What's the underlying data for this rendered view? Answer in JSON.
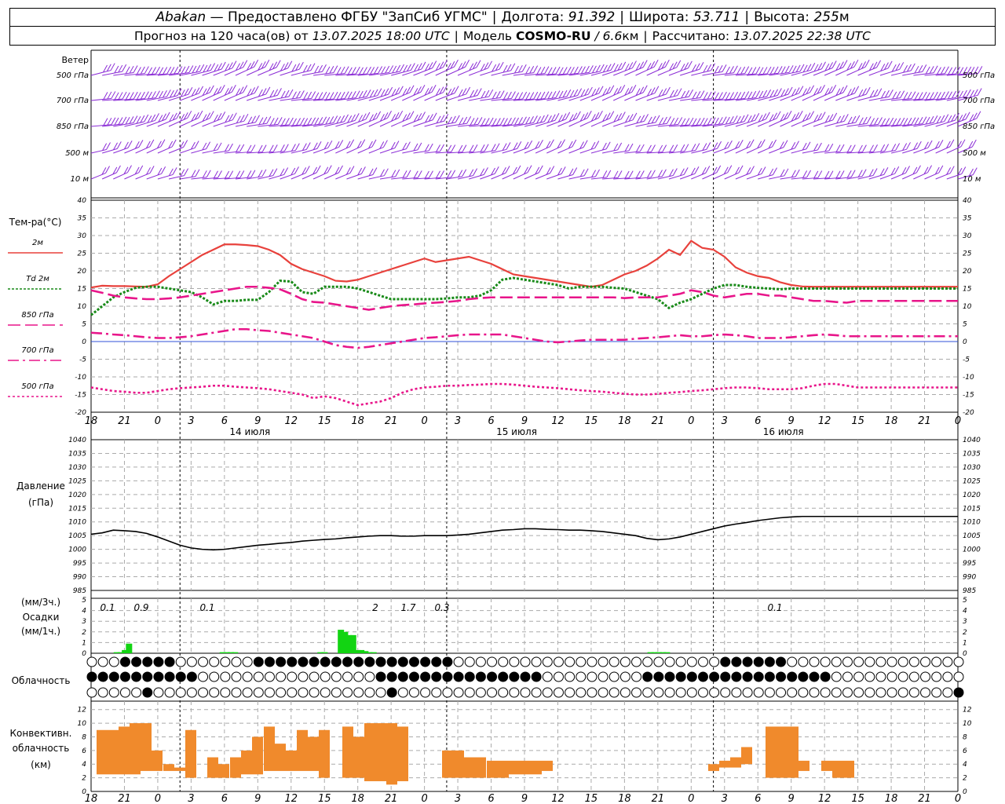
{
  "header": {
    "station": "Abakan",
    "provider": "— Предоставлено ФГБУ \"ЗапСиб УГМС\"",
    "lon_label": "Долгота:",
    "lon": "91.392",
    "lat_label": "Широта:",
    "lat": "53.711",
    "alt_label": "Высота:",
    "alt": "255",
    "alt_unit": "м",
    "forecast_label": "Прогноз на 120 часа(ов) от",
    "forecast_start": "13.07.2025 18:00 UTC",
    "model_label": "Модель",
    "model": "COSMO-RU",
    "model_sep": "/",
    "model_res": "6.6",
    "model_res_unit": "км",
    "calc_label": "Рассчитано:",
    "calc_time": "13.07.2025 22:38 UTC"
  },
  "panels": {
    "wind": {
      "title": "Ветер",
      "levels": [
        "500 гПа",
        "700 гПа",
        "850 гПа",
        "500 м",
        "10 м"
      ],
      "barb_color": "#8b2cd6"
    },
    "temperature": {
      "title": "Тем-ра(°C)",
      "legend": [
        "2м",
        "Td 2м",
        "850 гПа",
        "700 гПа",
        "500 гПа"
      ],
      "colors": [
        "#e8413c",
        "#188a18",
        "#e8158a",
        "#e8158a",
        "#e8158a"
      ]
    },
    "pressure": {
      "title1": "Давление",
      "title2": "(гПа)"
    },
    "precip": {
      "units1": "(мм/3ч.)",
      "title": "Осадки",
      "units2": "(мм/1ч.)",
      "labels": [
        "0.1",
        "0.9",
        "0.1",
        "2",
        "1.7",
        "0.3",
        "0.1"
      ],
      "bar_color": "#12d412"
    },
    "cloud": {
      "title": "Облачность"
    },
    "convective": {
      "title1": "Конвективн.",
      "title2": "облачность",
      "title3": "(км)",
      "bar_color": "#f08a2c"
    }
  },
  "axis": {
    "hour_labels": [
      "18",
      "21",
      "0",
      "3",
      "6",
      "9",
      "12",
      "15",
      "18",
      "21",
      "0",
      "3",
      "6",
      "9",
      "12",
      "15",
      "18",
      "21",
      "0",
      "3",
      "6",
      "9",
      "12",
      "15",
      "18",
      "21",
      "0"
    ],
    "date_labels": [
      "14 июля",
      "15 июля",
      "16 июля"
    ]
  },
  "chart_data": [
    {
      "type": "line",
      "title": "Тем-ра(°C)",
      "ylim": [
        -20,
        40
      ],
      "yticks": [
        40,
        35,
        30,
        25,
        20,
        15,
        10,
        5,
        0,
        -5,
        -10,
        -15,
        -20
      ],
      "x_hours": [
        0,
        3,
        6,
        9,
        12,
        15,
        18,
        21,
        24,
        27,
        30,
        33,
        36,
        39,
        42,
        45,
        48,
        51,
        54,
        57,
        60,
        63,
        66,
        69,
        72,
        75,
        78,
        81,
        84,
        87,
        90,
        93,
        96,
        99,
        102,
        105,
        108,
        111,
        114,
        117,
        120,
        123,
        126,
        129,
        132,
        135,
        138,
        141,
        144,
        147,
        150,
        153,
        156,
        159,
        162,
        165,
        168,
        171,
        174,
        177,
        180,
        183,
        186,
        189,
        192,
        195,
        198,
        201,
        204,
        207,
        210,
        213,
        216,
        219,
        222,
        225,
        228,
        231,
        234
      ],
      "series": [
        {
          "name": "2м",
          "values": [
            15.3,
            15.8,
            15.7,
            15.7,
            15.6,
            15.5,
            16.2,
            18.5,
            20.5,
            22.5,
            24.5,
            26,
            27.5,
            27.5,
            27.3,
            27,
            26,
            24.5,
            22,
            20.5,
            19.5,
            18.5,
            17.2,
            17,
            17.5,
            18.5,
            19.5,
            20.5,
            21.5,
            22.5,
            23.5,
            22.5,
            23,
            23.5,
            24,
            23,
            22,
            20.5,
            19,
            18.5,
            18,
            17.5,
            17,
            16.5,
            16,
            15.5,
            16,
            17.5,
            19,
            20,
            21.5,
            23.5,
            26,
            24.5,
            28.5,
            26.5,
            26,
            24,
            21,
            19.5,
            18.5,
            18,
            16.8,
            16,
            15.6,
            15.5,
            15.5,
            15.5,
            15.5,
            15.5,
            15.5,
            15.5,
            15.5,
            15.5,
            15.5,
            15.5,
            15.5,
            15.5,
            15.5
          ]
        },
        {
          "name": "Td 2м",
          "values": [
            7.5,
            10,
            12.5,
            14,
            15.2,
            15.5,
            15.5,
            15,
            14.5,
            14,
            12.5,
            10.5,
            11.5,
            11.5,
            11.8,
            11.8,
            14,
            17.2,
            17,
            14,
            13.5,
            15.5,
            15.5,
            15.5,
            15,
            14,
            13,
            12,
            12,
            12,
            12,
            12,
            12.2,
            12.5,
            12.5,
            13,
            14.5,
            17.5,
            18,
            17.5,
            17,
            16.5,
            16,
            15,
            15.5,
            15.5,
            15.5,
            15.2,
            15,
            14,
            13,
            12,
            9.5,
            11,
            12,
            13.5,
            15,
            16,
            16,
            15.5,
            15.2,
            15,
            14.8,
            15,
            15,
            15,
            15,
            15,
            15,
            15,
            15,
            15,
            15,
            15,
            15,
            15,
            15,
            15,
            15
          ]
        },
        {
          "name": "850 гПа",
          "values": [
            14.5,
            13.8,
            13,
            12.5,
            12.2,
            12,
            12,
            12.2,
            12.5,
            13,
            13.5,
            14,
            14.5,
            15,
            15.5,
            15.5,
            15.2,
            14.8,
            13.5,
            12,
            11.2,
            11,
            10.5,
            10,
            9.5,
            9,
            9.5,
            10,
            10.3,
            10.5,
            10.8,
            11,
            11.2,
            11.5,
            12,
            12.3,
            12.5,
            12.5,
            12.5,
            12.5,
            12.5,
            12.5,
            12.5,
            12.5,
            12.5,
            12.5,
            12.5,
            12.5,
            12.3,
            12.5,
            12.5,
            12.5,
            13,
            13.5,
            14.5,
            14,
            13,
            12.5,
            13,
            13.5,
            13.5,
            13,
            13,
            12.5,
            12,
            11.5,
            11.5,
            11.2,
            11,
            11.5,
            11.5,
            11.5,
            11.5,
            11.5,
            11.5,
            11.5,
            11.5,
            11.5,
            11.5
          ]
        },
        {
          "name": "700 гПа",
          "values": [
            2.5,
            2.3,
            2,
            1.8,
            1.5,
            1.2,
            1,
            1,
            1.2,
            1.5,
            2,
            2.5,
            3,
            3.5,
            3.5,
            3.2,
            3,
            2.5,
            2,
            1.5,
            1,
            0,
            -1,
            -1.5,
            -1.8,
            -1.5,
            -1,
            -0.5,
            0,
            0.5,
            1,
            1.2,
            1.5,
            1.8,
            2,
            2,
            2,
            2,
            1.5,
            1,
            0.5,
            0,
            -0.2,
            0,
            0.3,
            0.5,
            0.5,
            0.5,
            0.5,
            0.8,
            1,
            1.2,
            1.5,
            1.8,
            1.5,
            1.5,
            1.8,
            2,
            1.8,
            1.5,
            1,
            1,
            1,
            1.2,
            1.5,
            1.8,
            2,
            1.8,
            1.5,
            1.5,
            1.5,
            1.5,
            1.5,
            1.5,
            1.5,
            1.5,
            1.5,
            1.5,
            1.5
          ]
        },
        {
          "name": "500 гПа",
          "values": [
            -13,
            -13.5,
            -14,
            -14.2,
            -14.5,
            -14.5,
            -14,
            -13.5,
            -13.2,
            -13,
            -12.8,
            -12.5,
            -12.5,
            -12.8,
            -13,
            -13.2,
            -13.5,
            -14,
            -14.5,
            -15,
            -16,
            -15.5,
            -16,
            -17,
            -18,
            -17.5,
            -17,
            -16,
            -14.5,
            -13.5,
            -13,
            -12.8,
            -12.5,
            -12.5,
            -12.3,
            -12.2,
            -12,
            -12,
            -12.2,
            -12.5,
            -12.8,
            -13,
            -13.2,
            -13.5,
            -13.8,
            -14,
            -14.2,
            -14.5,
            -14.8,
            -15,
            -15,
            -14.8,
            -14.5,
            -14.3,
            -14,
            -13.8,
            -13.5,
            -13.2,
            -13,
            -13,
            -13.2,
            -13.5,
            -13.5,
            -13.5,
            -13.2,
            -12.5,
            -12,
            -12,
            -12.5,
            -13,
            -13,
            -13,
            -13,
            -13,
            -13,
            -13,
            -13,
            -13,
            -13
          ]
        }
      ]
    },
    {
      "type": "line",
      "title": "Давление (гПа)",
      "ylim": [
        985,
        1040
      ],
      "yticks": [
        1040,
        1035,
        1030,
        1025,
        1020,
        1015,
        1010,
        1005,
        1000,
        995,
        990,
        985
      ],
      "series": [
        {
          "name": "Давление",
          "values": [
            1005.5,
            1006,
            1007,
            1006.8,
            1006.5,
            1005.8,
            1004.5,
            1003,
            1001.5,
            1000.5,
            1000,
            999.8,
            1000,
            1000.5,
            1001,
            1001.5,
            1001.8,
            1002.2,
            1002.5,
            1003,
            1003.3,
            1003.6,
            1003.8,
            1004.2,
            1004.5,
            1004.8,
            1005,
            1005,
            1004.8,
            1004.8,
            1005,
            1005,
            1005,
            1005.2,
            1005.5,
            1006,
            1006.5,
            1007,
            1007.2,
            1007.5,
            1007.5,
            1007.3,
            1007.2,
            1007,
            1007,
            1006.8,
            1006.5,
            1006,
            1005.5,
            1005,
            1004,
            1003.5,
            1003.8,
            1004.5,
            1005.5,
            1006.5,
            1007.5,
            1008.5,
            1009.2,
            1009.8,
            1010.5,
            1011,
            1011.5,
            1011.8,
            1012,
            1012,
            1012,
            1012,
            1012,
            1012,
            1012,
            1012,
            1012,
            1012,
            1012,
            1012,
            1012,
            1012,
            1012
          ]
        }
      ]
    },
    {
      "type": "bar",
      "title": "Осадки",
      "ylim": [
        0,
        5
      ],
      "series": [
        {
          "name": "мм/1ч",
          "x_hours": [
            0,
            1,
            2,
            3,
            4,
            5,
            6,
            7,
            30,
            31,
            32,
            33,
            34,
            35,
            36,
            37,
            38,
            54,
            55,
            56,
            57,
            58,
            59,
            60,
            61,
            62,
            63,
            64,
            65,
            66,
            67,
            68,
            69,
            70,
            71,
            72,
            73,
            74,
            75,
            76,
            77,
            78,
            79,
            80,
            81,
            82,
            135,
            136,
            137,
            138,
            139,
            140,
            141,
            142
          ],
          "values": [
            0,
            0,
            0,
            0,
            0.1,
            0.1,
            0.3,
            0.9,
            0.1,
            0.1,
            0.1,
            0.1,
            0,
            0,
            0,
            0,
            0,
            0.1,
            0.1,
            0,
            0,
            0,
            2.2,
            2,
            1.7,
            1.7,
            0.3,
            0.3,
            0.2,
            0.1,
            0.1,
            0,
            0,
            0,
            0,
            0,
            0,
            0,
            0,
            0,
            0,
            0,
            0,
            0,
            0,
            0,
            0.1,
            0.1,
            0.1,
            0.1,
            0.1,
            0,
            0,
            0
          ]
        }
      ]
    },
    {
      "type": "bar",
      "title": "Конвективн. облачность (км)",
      "ylim": [
        0,
        13
      ],
      "yticks": [
        12,
        10,
        8,
        6,
        4,
        2,
        0
      ],
      "series": [
        {
          "name": "top",
          "values": [
            9,
            9,
            9.5,
            10,
            10,
            6,
            4,
            3.5,
            9,
            5,
            4,
            5,
            6,
            8,
            9.5,
            7,
            6,
            9,
            8,
            9,
            9.5,
            8,
            10,
            10,
            10,
            9.5,
            6,
            6,
            5,
            5,
            4.5,
            4.5,
            4.5,
            4.5,
            4.5,
            4.5,
            2,
            2,
            2,
            2,
            3,
            4,
            4.5,
            5,
            6.5,
            9.5,
            9.5,
            9.5,
            4.5,
            4.5,
            4.5,
            4.5
          ]
        },
        {
          "name": "base",
          "values": [
            2.5,
            2.5,
            2.5,
            2.5,
            3,
            3,
            3,
            3,
            2,
            2,
            2,
            2,
            2.5,
            2.5,
            3,
            3,
            3,
            3,
            3,
            2,
            2,
            2,
            1.5,
            1.5,
            1,
            1.5,
            2,
            2,
            2,
            2,
            2,
            2,
            2.5,
            2.5,
            2.5,
            3,
            3,
            3,
            3,
            3,
            3,
            3,
            3.5,
            3.5,
            4,
            2,
            2,
            2,
            3,
            3,
            2,
            2
          ]
        }
      ]
    }
  ]
}
